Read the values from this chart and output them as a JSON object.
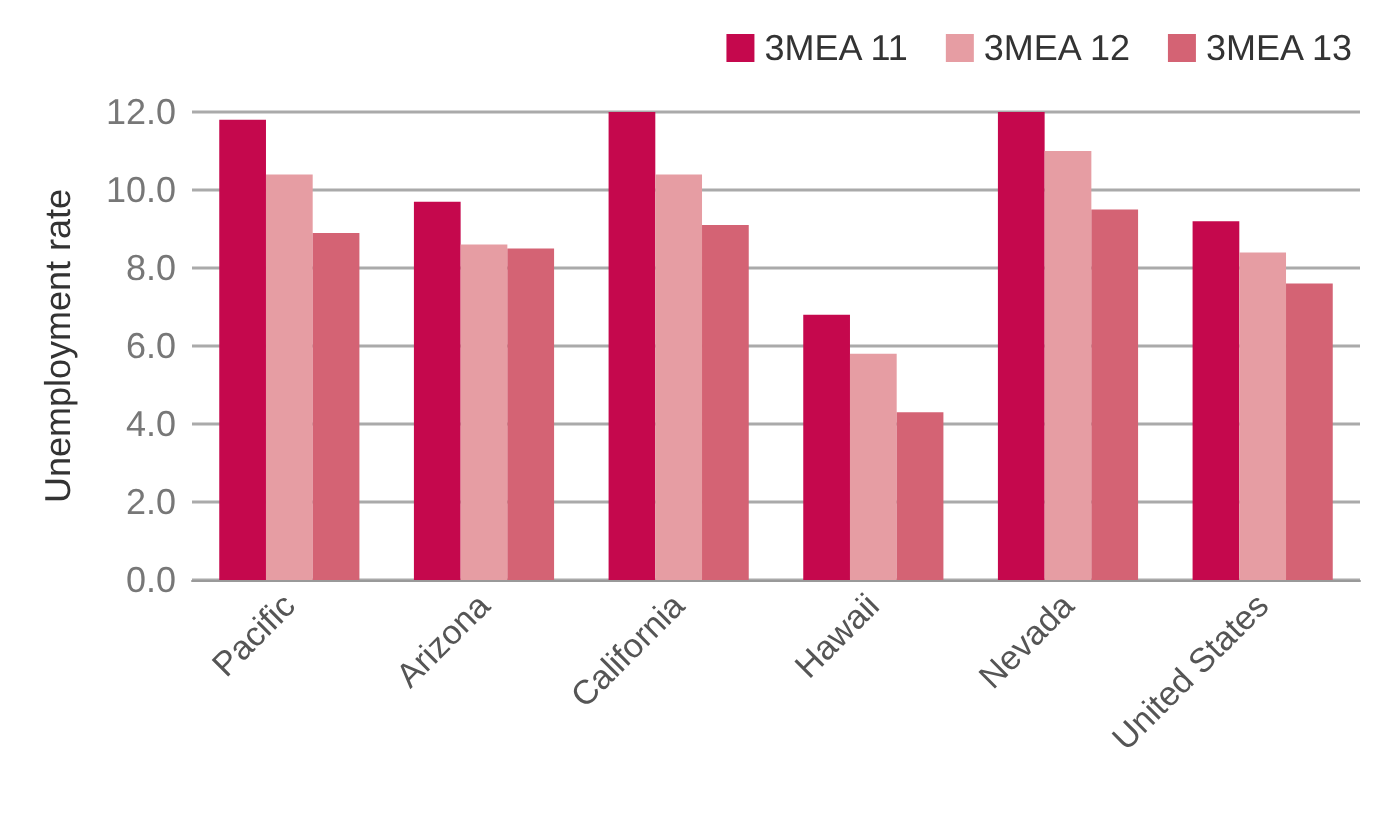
{
  "chart_data": {
    "type": "bar",
    "ylabel": "Unemployment rate",
    "categories": [
      "Pacific",
      "Arizona",
      "California",
      "Hawaii",
      "Nevada",
      "United States"
    ],
    "series": [
      {
        "name": "3MEA 11",
        "color": "#c5084d",
        "values": [
          11.8,
          9.7,
          12.0,
          6.8,
          12.0,
          9.2
        ]
      },
      {
        "name": "3MEA 12",
        "color": "#e69da3",
        "values": [
          10.4,
          8.6,
          10.4,
          5.8,
          11.0,
          8.4
        ]
      },
      {
        "name": "3MEA 13",
        "color": "#d46374",
        "values": [
          8.9,
          8.5,
          9.1,
          4.3,
          9.5,
          7.6
        ]
      }
    ],
    "ylim": [
      0,
      12
    ],
    "yticks": [
      {
        "value": 0,
        "label": "0.0"
      },
      {
        "value": 2,
        "label": "2.0"
      },
      {
        "value": 4,
        "label": "4.0"
      },
      {
        "value": 6,
        "label": "6.0"
      },
      {
        "value": 8,
        "label": "8.0"
      },
      {
        "value": 10,
        "label": "10.0"
      },
      {
        "value": 12,
        "label": "12.0"
      }
    ],
    "grid": "y",
    "legend": "top right"
  }
}
